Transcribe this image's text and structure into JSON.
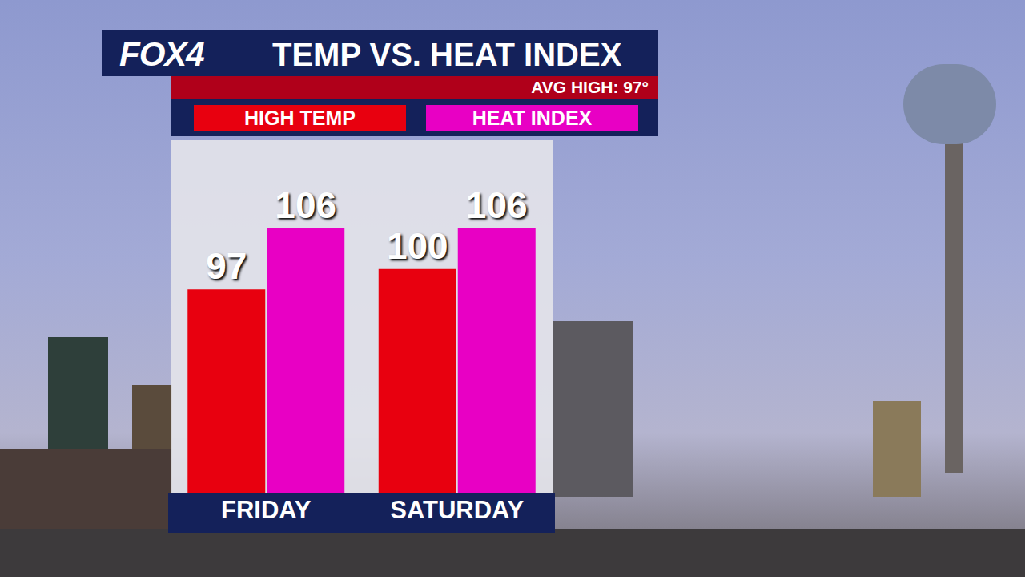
{
  "chart_data": {
    "type": "bar",
    "logo": "FOX4",
    "title": "TEMP VS. HEAT INDEX",
    "subtitle": "AVG HIGH: 97°",
    "categories": [
      "FRIDAY",
      "SATURDAY"
    ],
    "series": [
      {
        "name": "HIGH TEMP",
        "color": "#e8000f",
        "values": [
          97,
          100
        ]
      },
      {
        "name": "HEAT INDEX",
        "color": "#e800c4",
        "values": [
          106,
          106
        ]
      }
    ],
    "ylim": [
      67,
      119
    ],
    "grid": false,
    "tick_labels": "x",
    "data_labels": true,
    "legend": "top"
  }
}
